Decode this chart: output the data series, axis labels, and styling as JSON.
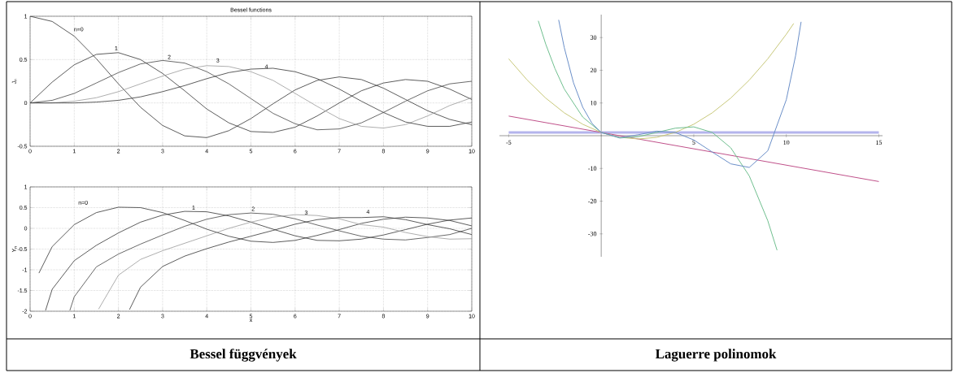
{
  "chart_data": [
    {
      "type": "line",
      "title": "Bessel functions",
      "ylabel": "J$_{n}$",
      "grid": true,
      "line_style": "solid",
      "x": [
        0,
        0.5,
        1,
        1.5,
        2,
        2.5,
        3,
        3.5,
        4,
        4.5,
        5,
        5.5,
        6,
        6.5,
        7,
        7.5,
        8,
        8.5,
        9,
        9.5,
        10
      ],
      "xlim": [
        0,
        10
      ],
      "xticks": [
        0,
        1,
        2,
        3,
        4,
        5,
        6,
        7,
        8,
        9,
        10
      ],
      "ylim": [
        -0.5,
        1
      ],
      "yticks": [
        -0.5,
        0,
        0.5,
        1
      ],
      "series": [
        {
          "color": "#333333",
          "values": [
            1,
            0.94,
            0.77,
            0.51,
            0.22,
            -0.05,
            -0.26,
            -0.38,
            -0.4,
            -0.32,
            -0.18,
            -0.01,
            0.15,
            0.26,
            0.3,
            0.27,
            0.17,
            0.04,
            -0.09,
            -0.19,
            -0.25
          ]
        },
        {
          "color": "#333333",
          "values": [
            0,
            0.24,
            0.44,
            0.56,
            0.58,
            0.5,
            0.34,
            0.14,
            -0.07,
            -0.23,
            -0.33,
            -0.34,
            -0.28,
            -0.15,
            0,
            0.14,
            0.23,
            0.27,
            0.25,
            0.16,
            0.04
          ]
        },
        {
          "color": "#444444",
          "values": [
            0,
            0.03,
            0.11,
            0.23,
            0.35,
            0.45,
            0.49,
            0.46,
            0.36,
            0.22,
            0.05,
            -0.12,
            -0.24,
            -0.31,
            -0.3,
            -0.23,
            -0.11,
            0.02,
            0.14,
            0.22,
            0.25
          ]
        },
        {
          "color": "#999999",
          "values": [
            0,
            0,
            0.02,
            0.06,
            0.13,
            0.22,
            0.31,
            0.39,
            0.43,
            0.42,
            0.36,
            0.26,
            0.11,
            -0.04,
            -0.18,
            -0.27,
            -0.29,
            -0.25,
            -0.15,
            -0.03,
            0.06
          ]
        },
        {
          "color": "#333333",
          "values": [
            0,
            0,
            0,
            0.01,
            0.03,
            0.07,
            0.13,
            0.2,
            0.28,
            0.35,
            0.39,
            0.4,
            0.36,
            0.28,
            0.16,
            0.02,
            -0.11,
            -0.22,
            -0.27,
            -0.27,
            -0.22
          ]
        }
      ],
      "annotations": [
        "n=0",
        "1",
        "2",
        "3",
        "4"
      ]
    },
    {
      "type": "line",
      "xlabel": "x",
      "ylabel": "Y$_{n}$",
      "grid": true,
      "line_style": "solid",
      "xlim": [
        0,
        10
      ],
      "xticks": [
        0,
        1,
        2,
        3,
        4,
        5,
        6,
        7,
        8,
        9,
        10
      ],
      "ylim": [
        -2,
        1
      ],
      "yticks": [
        -2,
        -1.5,
        -1,
        -0.5,
        0,
        0.5,
        1
      ],
      "series": [
        {
          "color": "#333333",
          "x": [
            0.2,
            0.5,
            1,
            1.5,
            2,
            2.5,
            3,
            3.5,
            4,
            4.5,
            5,
            5.5,
            6,
            6.5,
            7,
            7.5,
            8,
            8.5,
            9,
            9.5,
            10
          ],
          "values": [
            -1.08,
            -0.44,
            0.09,
            0.38,
            0.51,
            0.5,
            0.38,
            0.19,
            -0.02,
            -0.19,
            -0.31,
            -0.34,
            -0.29,
            -0.17,
            -0.03,
            0.12,
            0.22,
            0.27,
            0.25,
            0.19,
            0.06
          ]
        },
        {
          "color": "#333333",
          "x": [
            0.35,
            0.5,
            1,
            1.5,
            2,
            2.5,
            3,
            3.5,
            4,
            4.5,
            5,
            5.5,
            6,
            6.5,
            7,
            7.5,
            8,
            8.5,
            9,
            9.5,
            10
          ],
          "values": [
            -1.98,
            -1.47,
            -0.78,
            -0.41,
            -0.11,
            0.15,
            0.32,
            0.41,
            0.4,
            0.3,
            0.15,
            -0.02,
            -0.18,
            -0.29,
            -0.3,
            -0.26,
            -0.16,
            -0.03,
            0.1,
            0.2,
            0.25
          ]
        },
        {
          "color": "#444444",
          "x": [
            0.9,
            1,
            1.5,
            2,
            2.5,
            3,
            3.5,
            4,
            4.5,
            5,
            5.5,
            6,
            6.5,
            7,
            7.5,
            8,
            8.5,
            9,
            9.5,
            10
          ],
          "values": [
            -1.98,
            -1.65,
            -0.93,
            -0.62,
            -0.38,
            -0.16,
            0.05,
            0.22,
            0.33,
            0.37,
            0.34,
            0.23,
            0.08,
            -0.06,
            -0.19,
            -0.26,
            -0.28,
            -0.22,
            -0.15,
            0
          ]
        },
        {
          "color": "#999999",
          "x": [
            1.55,
            2,
            2.5,
            3,
            3.5,
            4,
            4.5,
            5,
            5.5,
            6,
            6.5,
            7,
            7.5,
            8,
            8.5,
            9,
            9.5,
            10
          ],
          "values": [
            -1.95,
            -1.13,
            -0.75,
            -0.54,
            -0.36,
            -0.18,
            0,
            0.15,
            0.27,
            0.33,
            0.31,
            0.23,
            0.09,
            0.03,
            -0.1,
            -0.2,
            -0.26,
            -0.25
          ]
        },
        {
          "color": "#333333",
          "x": [
            2.25,
            2.5,
            3,
            3.5,
            4,
            4.5,
            5,
            5.5,
            6,
            6.5,
            7,
            7.5,
            8,
            8.5,
            9,
            9.5,
            10
          ],
          "values": [
            -1.96,
            -1.42,
            -0.92,
            -0.67,
            -0.49,
            -0.33,
            -0.19,
            -0.05,
            0.1,
            0.21,
            0.26,
            0.26,
            0.28,
            0.21,
            0.09,
            -0.01,
            -0.15
          ]
        }
      ],
      "annotations": [
        "n=0",
        "1",
        "2",
        "3",
        "4",
        "Bessel függvények"
      ]
    },
    {
      "type": "line",
      "line_style": "solid",
      "xlim": [
        -5.5,
        15.2
      ],
      "xticks": [
        -5,
        5,
        10,
        15
      ],
      "ylim": [
        -37,
        37
      ],
      "yticks": [
        -30,
        -20,
        -10,
        10,
        20,
        30
      ],
      "series": [
        {
          "color": "#b4b4ec",
          "x": [
            -5,
            15
          ],
          "values": [
            1,
            1
          ]
        },
        {
          "color": "#c0508a",
          "x": [
            -5,
            15
          ],
          "values": [
            6,
            -14
          ]
        },
        {
          "color": "#c8c87a",
          "x": [
            -5,
            -4,
            -3,
            -2,
            -1,
            0,
            1,
            2,
            3,
            4,
            5,
            6,
            7,
            8,
            9,
            10,
            10.4
          ],
          "values": [
            23.5,
            17,
            11.5,
            7,
            3.5,
            1,
            -0.5,
            -1,
            -0.5,
            1,
            3.5,
            7,
            11.5,
            17,
            23.5,
            31,
            34.3
          ]
        },
        {
          "color": "#6fbf8f",
          "x": [
            -3.4,
            -3,
            -2.5,
            -2,
            -1,
            0,
            1,
            2,
            3,
            4,
            5,
            6,
            7,
            8,
            9,
            9.5
          ],
          "values": [
            35.1,
            28,
            20.5,
            14.3,
            5.7,
            1,
            -0.7,
            -0.3,
            1,
            2.3,
            2.7,
            1,
            -3.7,
            -12.3,
            -26,
            -35
          ]
        },
        {
          "color": "#6a8fc8",
          "x": [
            -2.3,
            -2,
            -1.5,
            -1,
            -0.5,
            0,
            1,
            2,
            3,
            4,
            5,
            6,
            7,
            8,
            9,
            10,
            10.5,
            10.8
          ],
          "values": [
            35.4,
            27,
            16.2,
            8.7,
            3.8,
            1,
            -0.6,
            0.3,
            1.4,
            1,
            -1.3,
            -5,
            -8.6,
            -9.7,
            -4.6,
            11,
            24.4,
            34.8
          ]
        }
      ],
      "annotations": [
        "Laguerre polinomok"
      ]
    }
  ]
}
